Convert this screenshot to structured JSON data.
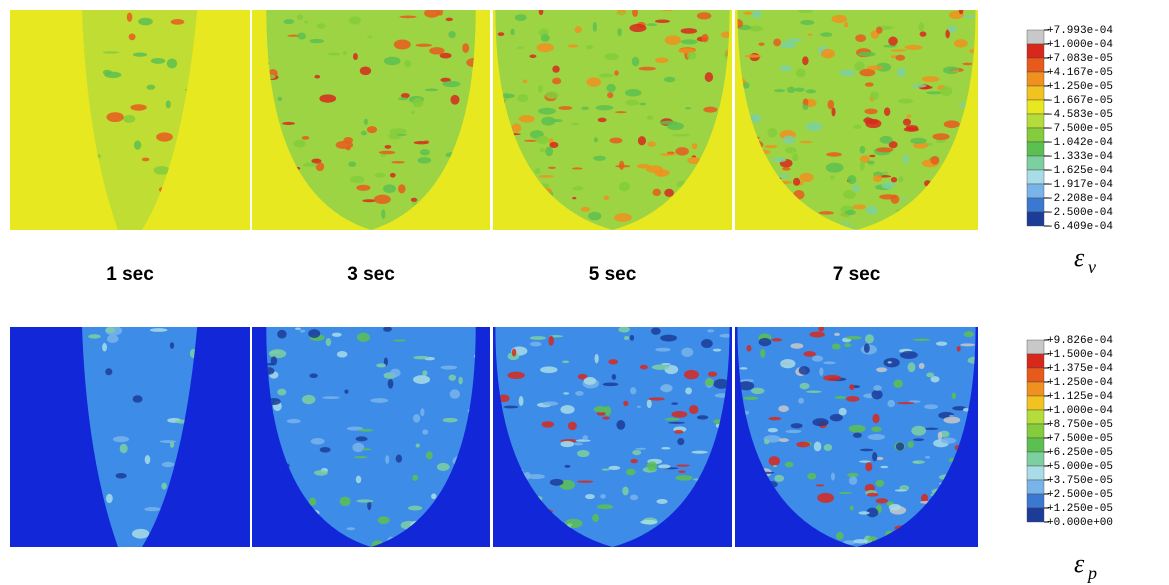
{
  "panels": {
    "time_labels": [
      "1 sec",
      "3 sec",
      "5 sec",
      "7 sec"
    ]
  },
  "legends": [
    {
      "symbol": "ε",
      "subscript": "v",
      "labels": [
        "+7.993e-04",
        "+1.000e-04",
        "+7.083e-05",
        "+4.167e-05",
        "+1.250e-05",
        "-1.667e-05",
        "-4.583e-05",
        "-7.500e-05",
        "-1.042e-04",
        "-1.333e-04",
        "-1.625e-04",
        "-1.917e-04",
        "-2.208e-04",
        "-2.500e-04",
        "-6.409e-04"
      ],
      "colors": [
        "#c8c8c8",
        "#d8281c",
        "#e85a1c",
        "#f0901e",
        "#f2c31e",
        "#e8e820",
        "#b4dc3a",
        "#84cc3c",
        "#5cc050",
        "#7cd0a0",
        "#a8dce6",
        "#78b4ea",
        "#3a78d2",
        "#1c3c98"
      ]
    },
    {
      "symbol": "ε",
      "subscript": "p",
      "labels": [
        "+9.826e-04",
        "+1.500e-04",
        "+1.375e-04",
        "+1.250e-04",
        "+1.125e-04",
        "+1.000e-04",
        "+8.750e-05",
        "+7.500e-05",
        "+6.250e-05",
        "+5.000e-05",
        "+3.750e-05",
        "+2.500e-05",
        "+1.250e-05",
        "+0.000e+00"
      ],
      "colors": [
        "#c8c8c8",
        "#d8281c",
        "#e85a1c",
        "#f0901e",
        "#f2c31e",
        "#b4dc3a",
        "#84cc3c",
        "#5cc050",
        "#7cd0a0",
        "#a8dce6",
        "#78b4ea",
        "#3a78d2",
        "#1c3c98"
      ]
    }
  ]
}
